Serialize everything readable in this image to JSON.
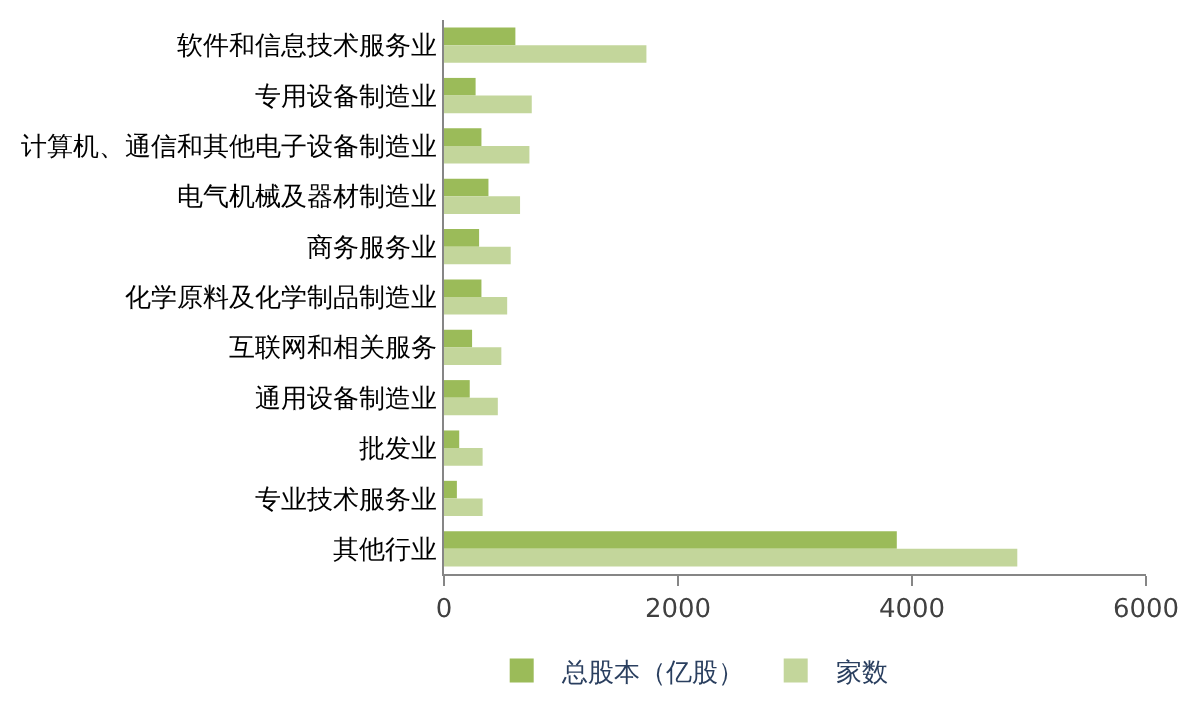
{
  "chart_data": {
    "type": "bar",
    "orientation": "horizontal",
    "categories": [
      "软件和信息技术服务业",
      "专用设备制造业",
      "计算机、通信和其他电子设备制造业",
      "电气机械及器材制造业",
      "商务服务业",
      "化学原料及化学制品制造业",
      "互联网和相关服务",
      "通用设备制造业",
      "批发业",
      "专业技术服务业",
      "其他行业"
    ],
    "series": [
      {
        "name": "总股本（亿股）",
        "color": "#9bbb59",
        "values": [
          610,
          270,
          320,
          380,
          300,
          320,
          240,
          220,
          130,
          110,
          3870
        ]
      },
      {
        "name": "家数",
        "color": "#c3d69b",
        "values": [
          1730,
          750,
          730,
          650,
          570,
          540,
          490,
          460,
          330,
          330,
          4900
        ]
      }
    ],
    "xlim": [
      0,
      6000
    ],
    "xticks": [
      0,
      2000,
      4000,
      6000
    ],
    "legend": "bottom"
  }
}
